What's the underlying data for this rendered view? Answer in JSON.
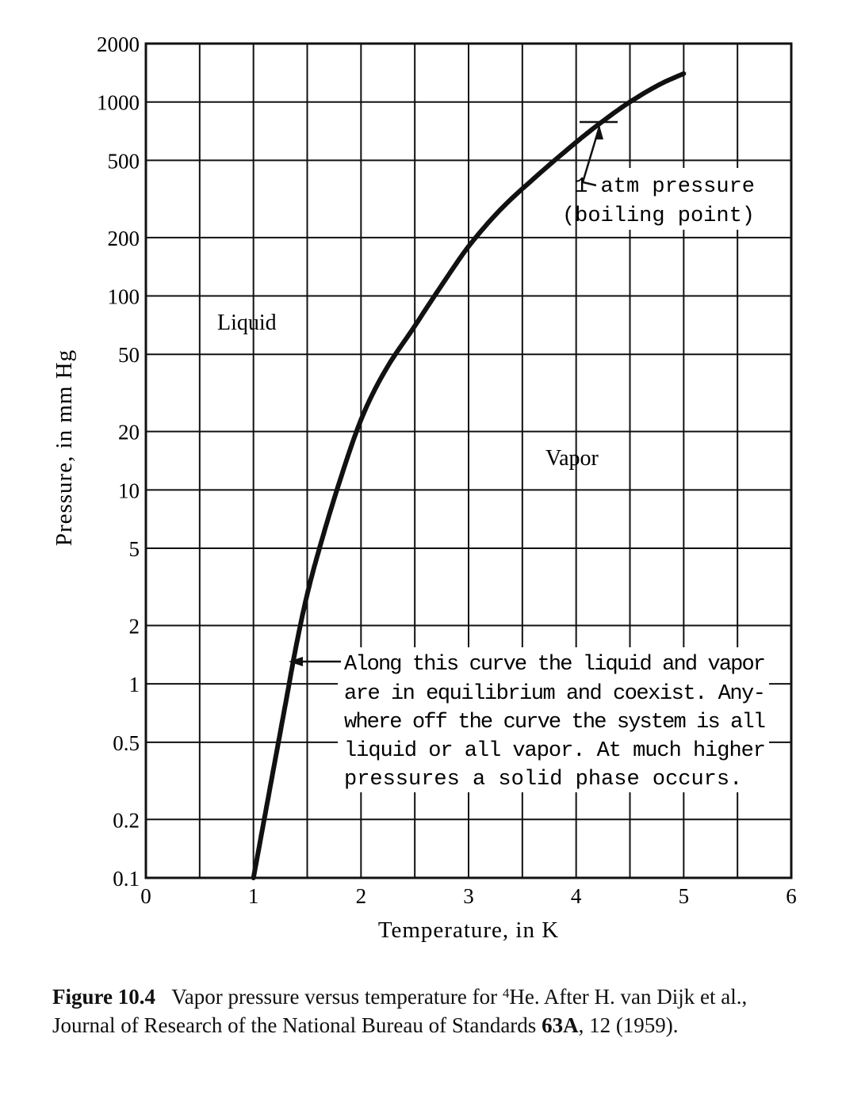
{
  "chart_data": {
    "type": "line",
    "title": "",
    "xlabel": "Temperature, in K",
    "ylabel": "Pressure, in mm Hg",
    "xlim": [
      0,
      6
    ],
    "ylim": [
      0.1,
      2000
    ],
    "yscale": "log",
    "grid": true,
    "x_ticks": [
      0,
      1,
      2,
      3,
      4,
      5,
      6
    ],
    "y_ticks": [
      {
        "value": 0.1,
        "label": "0.1"
      },
      {
        "value": 0.2,
        "label": "0.2"
      },
      {
        "value": 0.5,
        "label": "0.5"
      },
      {
        "value": 1,
        "label": "1"
      },
      {
        "value": 2,
        "label": "2"
      },
      {
        "value": 5,
        "label": "5"
      },
      {
        "value": 10,
        "label": "10"
      },
      {
        "value": 20,
        "label": "20"
      },
      {
        "value": 50,
        "label": "50"
      },
      {
        "value": 100,
        "label": "100"
      },
      {
        "value": 200,
        "label": "200"
      },
      {
        "value": 500,
        "label": "500"
      },
      {
        "value": 1000,
        "label": "1000"
      },
      {
        "value": 2000,
        "label": "2000"
      }
    ],
    "series": [
      {
        "name": "Vapor pressure of 4He",
        "x": [
          1.0,
          1.1,
          1.2,
          1.3,
          1.4,
          1.5,
          1.6,
          1.8,
          2.0,
          2.2,
          2.5,
          2.8,
          3.0,
          3.3,
          3.6,
          4.0,
          4.2,
          4.5,
          4.8,
          5.0
        ],
        "y": [
          0.1,
          0.2,
          0.4,
          0.8,
          1.6,
          2.9,
          4.7,
          11,
          23,
          39,
          70,
          125,
          180,
          280,
          400,
          620,
          760,
          1000,
          1250,
          1400
        ]
      }
    ],
    "region_labels": {
      "liquid": "Liquid",
      "vapor": "Vapor"
    },
    "annotations": {
      "boiling_point": {
        "x": 4.2,
        "y": 760,
        "lines": [
          "1 atm pressure",
          "(boiling point)"
        ]
      },
      "curve_note": {
        "lines": [
          "Along this curve the liquid and vapor",
          "are in equilibrium and coexist. Any-",
          "where off the curve the system is all",
          "liquid or all vapor. At much higher",
          "pressures a solid phase occurs."
        ]
      }
    }
  },
  "caption": {
    "label": "Figure 10.4",
    "text_before_sup": "Vapor pressure versus temperature for ",
    "sup": "4",
    "text_after_sup": "He. After H. van Dijk et al., Journal of Research of the National Bureau of Standards ",
    "volume": "63A",
    "text_end": ", 12 (1959)."
  }
}
